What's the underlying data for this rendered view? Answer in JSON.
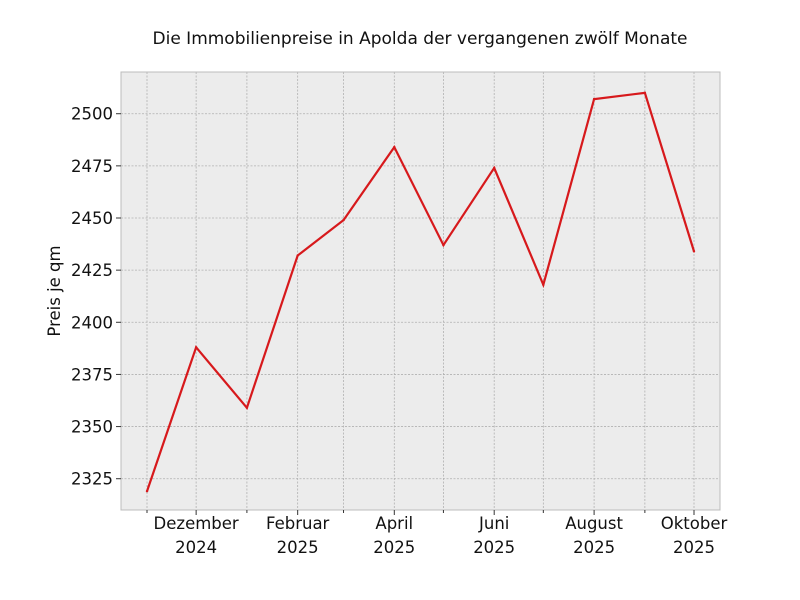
{
  "chart_data": {
    "type": "line",
    "title": "Die Immobilienpreise in Apolda der vergangenen zwölf Monate",
    "xlabel": "",
    "ylabel": "Preis je qm",
    "x": [
      "2024-11",
      "2024-12",
      "2025-01",
      "2025-02",
      "2025-03",
      "2025-04",
      "2025-05",
      "2025-06",
      "2025-07",
      "2025-08",
      "2025-09",
      "2025-10"
    ],
    "series": [
      {
        "values": [
          2319,
          2388,
          2359,
          2432,
          2449,
          2484,
          2437,
          2474,
          2418,
          2507,
          2510,
          2434
        ]
      }
    ],
    "xtick_labels": [
      {
        "x": "2024-12",
        "lines": [
          "Dezember",
          "2024"
        ]
      },
      {
        "x": "2025-02",
        "lines": [
          "Februar",
          "2025"
        ]
      },
      {
        "x": "2025-04",
        "lines": [
          "April",
          "2025"
        ]
      },
      {
        "x": "2025-06",
        "lines": [
          "Juni",
          "2025"
        ]
      },
      {
        "x": "2025-08",
        "lines": [
          "August",
          "2025"
        ]
      },
      {
        "x": "2025-10",
        "lines": [
          "Oktober",
          "2025"
        ]
      }
    ],
    "yticks": [
      2325,
      2350,
      2375,
      2400,
      2425,
      2450,
      2475,
      2500
    ],
    "ylim": [
      2310,
      2520
    ],
    "grid": true,
    "colors": {
      "line": "#d7191c",
      "plot_background": "#ececec",
      "grid": "#b0b0b0",
      "frame": "#bcbcbc"
    }
  }
}
